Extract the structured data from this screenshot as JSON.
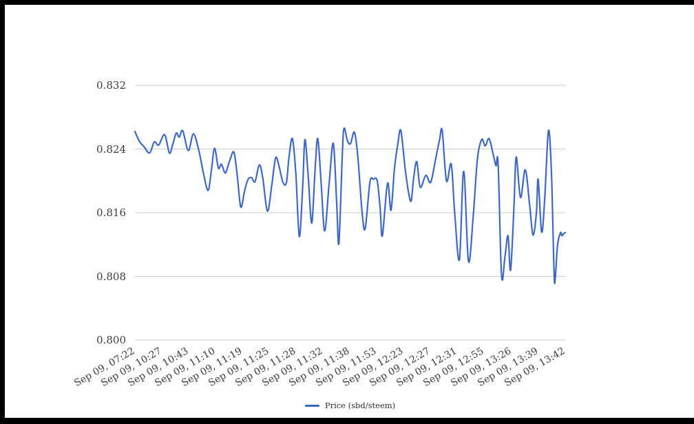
{
  "chart_data": {
    "type": "line",
    "title": "",
    "y_min": 0.8,
    "y_max": 0.832,
    "grid": true,
    "legend_position": "bottom",
    "colors": {
      "line": "#3c68c4",
      "grid": "#cccccc",
      "axis_text": "#3b3b3b",
      "background": "#ffffff",
      "frame": "#000000"
    },
    "y_tick_labels": [
      "0.832",
      "0.824",
      "0.816",
      "0.808",
      "0.800"
    ],
    "x_tick_labels": [
      "Sep 09, 07:22",
      "Sep 09, 10:27",
      "Sep 09, 10:43",
      "Sep 09, 11:10",
      "Sep 09, 11:19",
      "Sep 09, 11:25",
      "Sep 09, 11:28",
      "Sep 09, 11:32",
      "Sep 09, 11:38",
      "Sep 09, 11:53",
      "Sep 09, 12:23",
      "Sep 09, 12:27",
      "Sep 09, 12:31",
      "Sep 09, 12:55",
      "Sep 09, 13:26",
      "Sep 09, 13:39",
      "Sep 09, 13:42"
    ],
    "series": [
      {
        "name": "Price (sbd/steem)",
        "points": [
          [
            0.0,
            0.8262
          ],
          [
            0.01,
            0.825
          ],
          [
            0.021,
            0.8243
          ],
          [
            0.034,
            0.8235
          ],
          [
            0.045,
            0.8249
          ],
          [
            0.055,
            0.8245
          ],
          [
            0.069,
            0.8258
          ],
          [
            0.08,
            0.8235
          ],
          [
            0.088,
            0.8246
          ],
          [
            0.096,
            0.826
          ],
          [
            0.103,
            0.8255
          ],
          [
            0.111,
            0.8263
          ],
          [
            0.124,
            0.8238
          ],
          [
            0.136,
            0.8259
          ],
          [
            0.149,
            0.8237
          ],
          [
            0.159,
            0.821
          ],
          [
            0.17,
            0.8188
          ],
          [
            0.178,
            0.8215
          ],
          [
            0.185,
            0.8241
          ],
          [
            0.194,
            0.8216
          ],
          [
            0.201,
            0.8221
          ],
          [
            0.21,
            0.821
          ],
          [
            0.22,
            0.8225
          ],
          [
            0.23,
            0.8236
          ],
          [
            0.238,
            0.8205
          ],
          [
            0.246,
            0.8167
          ],
          [
            0.255,
            0.8188
          ],
          [
            0.263,
            0.8202
          ],
          [
            0.271,
            0.8204
          ],
          [
            0.279,
            0.8199
          ],
          [
            0.289,
            0.822
          ],
          [
            0.297,
            0.8204
          ],
          [
            0.308,
            0.8162
          ],
          [
            0.318,
            0.8195
          ],
          [
            0.327,
            0.8229
          ],
          [
            0.335,
            0.8218
          ],
          [
            0.344,
            0.8198
          ],
          [
            0.352,
            0.8198
          ],
          [
            0.358,
            0.823
          ],
          [
            0.366,
            0.8253
          ],
          [
            0.374,
            0.8208
          ],
          [
            0.382,
            0.813
          ],
          [
            0.39,
            0.8195
          ],
          [
            0.395,
            0.8252
          ],
          [
            0.403,
            0.8203
          ],
          [
            0.411,
            0.8147
          ],
          [
            0.419,
            0.8218
          ],
          [
            0.425,
            0.8253
          ],
          [
            0.433,
            0.8195
          ],
          [
            0.441,
            0.8137
          ],
          [
            0.451,
            0.8195
          ],
          [
            0.461,
            0.8247
          ],
          [
            0.469,
            0.817
          ],
          [
            0.474,
            0.8122
          ],
          [
            0.482,
            0.8235
          ],
          [
            0.486,
            0.8266
          ],
          [
            0.494,
            0.825
          ],
          [
            0.501,
            0.8247
          ],
          [
            0.51,
            0.8261
          ],
          [
            0.518,
            0.823
          ],
          [
            0.528,
            0.816
          ],
          [
            0.535,
            0.814
          ],
          [
            0.546,
            0.8198
          ],
          [
            0.554,
            0.8202
          ],
          [
            0.563,
            0.82
          ],
          [
            0.57,
            0.8165
          ],
          [
            0.575,
            0.8131
          ],
          [
            0.587,
            0.8197
          ],
          [
            0.595,
            0.8163
          ],
          [
            0.603,
            0.8215
          ],
          [
            0.611,
            0.8247
          ],
          [
            0.618,
            0.8263
          ],
          [
            0.628,
            0.8215
          ],
          [
            0.636,
            0.8185
          ],
          [
            0.642,
            0.8175
          ],
          [
            0.648,
            0.8205
          ],
          [
            0.655,
            0.8224
          ],
          [
            0.663,
            0.8192
          ],
          [
            0.676,
            0.8207
          ],
          [
            0.687,
            0.8198
          ],
          [
            0.698,
            0.8225
          ],
          [
            0.708,
            0.8252
          ],
          [
            0.714,
            0.8263
          ],
          [
            0.724,
            0.82
          ],
          [
            0.735,
            0.8221
          ],
          [
            0.743,
            0.816
          ],
          [
            0.754,
            0.8101
          ],
          [
            0.764,
            0.8212
          ],
          [
            0.775,
            0.8099
          ],
          [
            0.786,
            0.8155
          ],
          [
            0.796,
            0.8228
          ],
          [
            0.806,
            0.8252
          ],
          [
            0.814,
            0.8244
          ],
          [
            0.823,
            0.8253
          ],
          [
            0.833,
            0.8232
          ],
          [
            0.839,
            0.8219
          ],
          [
            0.844,
            0.8221
          ],
          [
            0.852,
            0.8081
          ],
          [
            0.86,
            0.8105
          ],
          [
            0.867,
            0.8131
          ],
          [
            0.873,
            0.8088
          ],
          [
            0.881,
            0.817
          ],
          [
            0.886,
            0.823
          ],
          [
            0.896,
            0.8179
          ],
          [
            0.907,
            0.8214
          ],
          [
            0.917,
            0.8171
          ],
          [
            0.925,
            0.8132
          ],
          [
            0.933,
            0.816
          ],
          [
            0.937,
            0.8202
          ],
          [
            0.945,
            0.8136
          ],
          [
            0.952,
            0.8175
          ],
          [
            0.961,
            0.8263
          ],
          [
            0.968,
            0.8209
          ],
          [
            0.974,
            0.8084
          ],
          [
            0.977,
            0.8079
          ],
          [
            0.982,
            0.8119
          ],
          [
            0.989,
            0.8135
          ],
          [
            0.992,
            0.8131
          ],
          [
            0.997,
            0.8134
          ],
          [
            1.0,
            0.8135
          ]
        ]
      }
    ]
  },
  "legend": {
    "label": "Price (sbd/steem)"
  }
}
